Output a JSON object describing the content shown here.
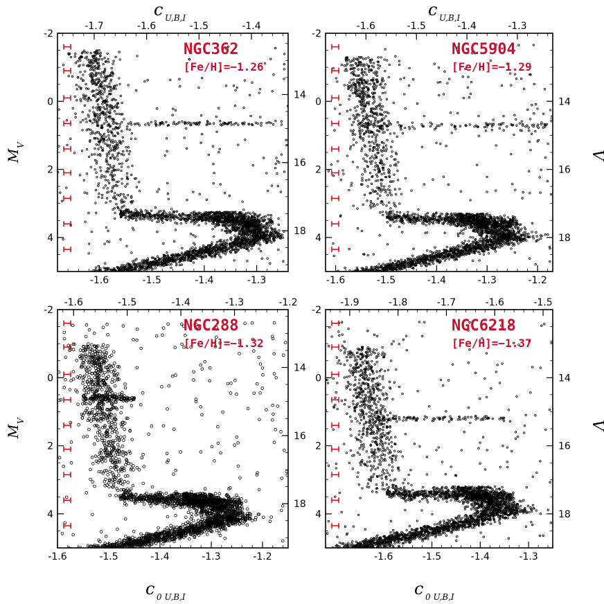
{
  "axis_text": {
    "top_main": "c",
    "top_sub": "U,B,I",
    "bottom_main": "c",
    "bottom_sub": "0 U,B,I",
    "left_main": "M",
    "left_sub": "V",
    "right": "V"
  },
  "colors": {
    "points": "#000000",
    "label": "#c8102e",
    "errorbar": "#e00000"
  },
  "chart_data": [
    {
      "type": "scatter",
      "name": "NGC362",
      "subtitle": "[Fe/H]=−1.26",
      "xlim": [
        -1.68,
        -1.24
      ],
      "ylim": [
        5,
        -2
      ],
      "xticks": [
        "-1.6",
        "-1.5",
        "-1.4",
        "-1.3"
      ],
      "xtick_values": [
        -1.6,
        -1.5,
        -1.4,
        -1.3
      ],
      "top_xlim": [
        -1.77,
        -1.33
      ],
      "top_xticks": [
        "-1.7",
        "-1.6",
        "-1.5",
        "-1.4"
      ],
      "top_xtick_values": [
        -1.7,
        -1.6,
        -1.5,
        -1.4
      ],
      "yticks": [
        "-2",
        "0",
        "2",
        "4"
      ],
      "ytick_values": [
        -2,
        0,
        2,
        4
      ],
      "right_ylim": [
        19.2,
        12.2
      ],
      "right_yticks": [
        "14",
        "16",
        "18"
      ],
      "right_ytick_values": [
        14,
        16,
        18
      ],
      "errorbars": [
        -1.6,
        -0.9,
        -0.1,
        0.65,
        1.4,
        2.1,
        2.85,
        3.6,
        4.35
      ],
      "distribution": {
        "rgb_top": -1.5,
        "rgb_bottom": 3.3,
        "hb_y": 0.65,
        "hb_x": [
          -1.57,
          -1.25
        ],
        "to_y": 3.95,
        "to_x": -1.27
      }
    },
    {
      "type": "scatter",
      "name": "NGC5904",
      "subtitle": "[Fe/H]=−1.29",
      "xlim": [
        -1.62,
        -1.17
      ],
      "ylim": [
        5,
        -2
      ],
      "xticks": [
        "-1.6",
        "-1.5",
        "-1.4",
        "-1.3",
        "-1.2"
      ],
      "xtick_values": [
        -1.6,
        -1.5,
        -1.4,
        -1.3,
        -1.2
      ],
      "top_xlim": [
        -1.68,
        -1.23
      ],
      "top_xticks": [
        "-1.6",
        "-1.5",
        "-1.4",
        "-1.3"
      ],
      "top_xtick_values": [
        -1.6,
        -1.5,
        -1.4,
        -1.3
      ],
      "yticks": [
        "-2",
        "0",
        "2",
        "4"
      ],
      "ytick_values": [
        -2,
        0,
        2,
        4
      ],
      "right_ylim": [
        19.0,
        12.0
      ],
      "right_yticks": [
        "14",
        "16",
        "18"
      ],
      "right_ytick_values": [
        14,
        16,
        18
      ],
      "errorbars": [
        -1.6,
        -0.9,
        -0.1,
        0.65,
        1.4,
        2.1,
        2.85,
        3.6,
        4.35
      ],
      "distribution": {
        "rgb_top": -1.3,
        "rgb_bottom": 3.4,
        "hb_y": 0.7,
        "hb_x": [
          -1.55,
          -1.18
        ],
        "to_y": 4.0,
        "to_x": -1.24
      }
    },
    {
      "type": "scatter",
      "name": "NGC288",
      "subtitle": "[Fe/H]=−1.32",
      "xlim": [
        -1.6,
        -1.15
      ],
      "ylim": [
        5,
        -2
      ],
      "xticks": [
        "-1.6",
        "-1.5",
        "-1.4",
        "-1.3",
        "-1.2"
      ],
      "xtick_values": [
        -1.6,
        -1.5,
        -1.4,
        -1.3,
        -1.2
      ],
      "top_xlim": [
        -1.63,
        -1.2
      ],
      "top_xticks": [
        "-1.6",
        "-1.5",
        "-1.4",
        "-1.3",
        "-1.2"
      ],
      "top_xtick_values": [
        -1.6,
        -1.5,
        -1.4,
        -1.3,
        -1.2
      ],
      "yticks": [
        "-2",
        "0",
        "2",
        "4"
      ],
      "ytick_values": [
        -2,
        0,
        2,
        4
      ],
      "right_ylim": [
        19.3,
        12.3
      ],
      "right_yticks": [
        "14",
        "16",
        "18"
      ],
      "right_ytick_values": [
        14,
        16,
        18
      ],
      "errorbars": [
        -1.6,
        -0.9,
        -0.1,
        0.65,
        1.4,
        2.1,
        2.85,
        3.6,
        4.35
      ],
      "distribution": {
        "rgb_top": -1.0,
        "rgb_bottom": 3.5,
        "hb_y": 0.6,
        "hb_x": [
          -1.55,
          -1.45
        ],
        "to_y": 4.1,
        "to_x": -1.24
      }
    },
    {
      "type": "scatter",
      "name": "NGC6218",
      "subtitle": "[Fe/H]=−1.37",
      "xlim": [
        -1.72,
        -1.25
      ],
      "ylim": [
        5,
        -2
      ],
      "xticks": [
        "-1.6",
        "-1.5",
        "-1.4",
        "-1.3"
      ],
      "xtick_values": [
        -1.6,
        -1.5,
        -1.4,
        -1.3
      ],
      "top_xlim": [
        -1.95,
        -1.48
      ],
      "top_xticks": [
        "-1.9",
        "-1.8",
        "-1.7",
        "-1.6",
        "-1.5"
      ],
      "top_xtick_values": [
        -1.9,
        -1.8,
        -1.7,
        -1.6,
        -1.5
      ],
      "yticks": [
        "-2",
        "0",
        "2",
        "4"
      ],
      "ytick_values": [
        -2,
        0,
        2,
        4
      ],
      "right_ylim": [
        19.0,
        12.0
      ],
      "right_yticks": [
        "14",
        "16",
        "18"
      ],
      "right_ytick_values": [
        14,
        16,
        18
      ],
      "errorbars": [
        -1.6,
        -0.9,
        -0.1,
        0.65,
        1.4,
        2.1,
        2.85,
        3.6,
        4.35
      ],
      "distribution": {
        "rgb_top": -0.9,
        "rgb_bottom": 3.4,
        "hb_y": 1.2,
        "hb_x": [
          -1.62,
          -1.35
        ],
        "to_y": 3.9,
        "to_x": -1.33
      }
    }
  ]
}
